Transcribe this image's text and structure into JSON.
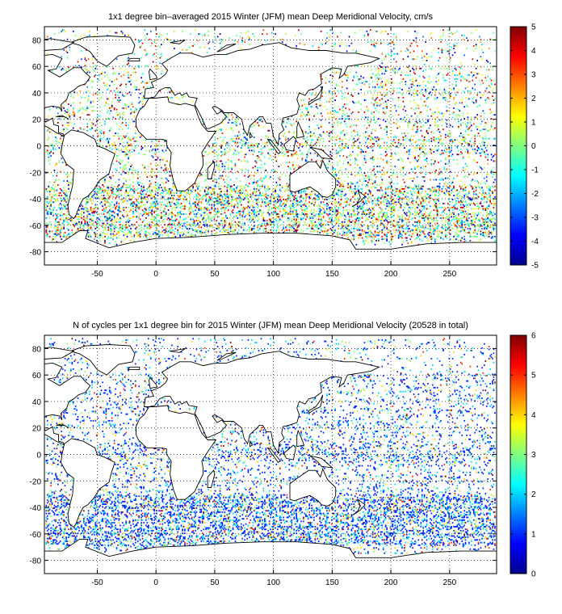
{
  "chart_data": [
    {
      "type": "heatmap",
      "title": "1x1 degree bin–averaged 2015 Winter (JFM) mean Deep Meridional Velocity, cm/s",
      "xlabel": "",
      "ylabel": "",
      "xlim": [
        -95,
        290
      ],
      "ylim": [
        -90,
        90
      ],
      "x_ticks": [
        "-50",
        "0",
        "50",
        "100",
        "150",
        "200",
        "250"
      ],
      "y_ticks": [
        "80",
        "60",
        "40",
        "20",
        "0",
        "-20",
        "-40",
        "-60",
        "-80"
      ],
      "grid": true,
      "colormap": "jet",
      "clim": [
        -5,
        5
      ],
      "colorbar_ticks": [
        "5",
        "4",
        "3",
        "2",
        "1",
        "0",
        "-1",
        "-2",
        "-3",
        "-4",
        "-5"
      ],
      "units": "cm/s"
    },
    {
      "type": "heatmap",
      "title": "N of cycles per 1x1 degree bin for 2015 Winter (JFM) mean Deep Meridional Velocity (20528 in total)",
      "xlabel": "",
      "ylabel": "",
      "xlim": [
        -95,
        290
      ],
      "ylim": [
        -90,
        90
      ],
      "x_ticks": [
        "-50",
        "0",
        "50",
        "100",
        "150",
        "200",
        "250"
      ],
      "y_ticks": [
        "80",
        "60",
        "40",
        "20",
        "0",
        "-20",
        "-40",
        "-60",
        "-80"
      ],
      "grid": true,
      "colormap": "jet",
      "clim": [
        0,
        6
      ],
      "colorbar_ticks": [
        "6",
        "5",
        "4",
        "3",
        "2",
        "1",
        "0"
      ],
      "total_cycles": 20528
    }
  ],
  "colors": {
    "jet_dark_blue": "#00008f",
    "jet_blue": "#0000ff",
    "jet_cyan": "#00ffff",
    "jet_yellow": "#ffff00",
    "jet_red": "#ff0000",
    "jet_dark_red": "#800000",
    "coastline": "#000000",
    "grid": "#000000"
  }
}
